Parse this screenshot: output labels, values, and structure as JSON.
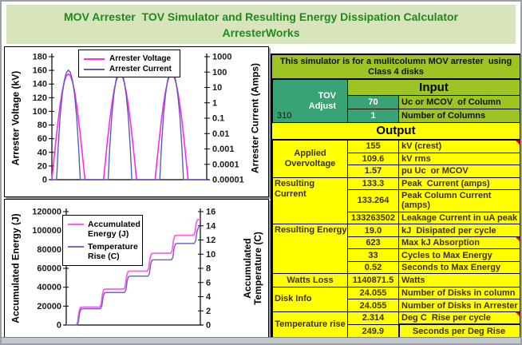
{
  "title": {
    "line1": "MOV Arrester  TOV Simulator and Resulting Energy Dissipation Calculator",
    "line2": "ArresterWorks"
  },
  "panel": {
    "note": "This simulator is for a mulitcolumn MOV arrester  using Class 4 disks",
    "tov": {
      "line1": "TOV",
      "line2": "Adjust",
      "value": "310"
    },
    "input_header": "Input",
    "input_rows": [
      {
        "value": "70",
        "desc": "Uc or MCOV  of Column"
      },
      {
        "value": "1",
        "desc": "Number of Columns"
      }
    ],
    "output_header": "Output",
    "group_labels": {
      "applied": "Applied Overvoltage",
      "current": "Resulting Current",
      "energy": "Resulting Energy",
      "watts": "Watts Loss",
      "disk": "Disk Info",
      "temp": "Temperature rise"
    },
    "output_rows": [
      {
        "value": "155",
        "desc": "kV (crest)"
      },
      {
        "value": "109.6",
        "desc": "kV rms"
      },
      {
        "value": "1.57",
        "desc": "pu Uc  or MCOV"
      },
      {
        "value": "133.3",
        "desc": "Peak  Current (amps)"
      },
      {
        "value": "133.264",
        "desc": "Peak Column Current (amps)"
      },
      {
        "value": "133263502",
        "desc": "Leakage Current in uA peak"
      },
      {
        "value": "19.0",
        "desc": "kJ  Disipated per cycle"
      },
      {
        "value": "623",
        "desc": "Max kJ Absorption"
      },
      {
        "value": "33",
        "desc": "Cycles to Max Energy"
      },
      {
        "value": "0.52",
        "desc": "Seconds to Max Energy"
      },
      {
        "value": "1140871.5",
        "desc": "Watts"
      },
      {
        "value": "24.055",
        "desc": "Number of Disks in column"
      },
      {
        "value": "24.055",
        "desc": "Number of Disks in Arrester"
      },
      {
        "value": "2.314",
        "desc": "Deg C  Rise per cycle"
      },
      {
        "value": "249.9",
        "desc": "Seconds per Deg Rise"
      }
    ],
    "colors": {
      "green_header": "#9dc422",
      "teal": "#38a476",
      "yellow": "#ffff00",
      "comment_marker": "#ff0000"
    }
  },
  "chart_data": [
    {
      "type": "line",
      "title": "",
      "left_axis": {
        "label": "Arrester Voltage (kV)",
        "min": 0,
        "max": 180,
        "tick_labels": [
          "180",
          "160",
          "140",
          "120",
          "100",
          "80",
          "60",
          "40",
          "20",
          "0"
        ]
      },
      "right_axis": {
        "label": "Arrester Current (Amps)",
        "scale": "log",
        "log_min": -5,
        "log_max": 3,
        "tick_labels": [
          "1000",
          "100",
          "10",
          "1",
          "0.1",
          "0.01",
          "0.001",
          "0.0001",
          "0.00001"
        ]
      },
      "x_axis": {
        "min": 0,
        "max": 3,
        "tick_labels": []
      },
      "legend_position": "top-center",
      "grid": false,
      "series": [
        {
          "name": "Arrester Voltage",
          "color": "#ff29f0",
          "width": 1.6,
          "axis": "left",
          "repeat": 3,
          "period": 1,
          "profile": [
            [
              0,
              0
            ],
            [
              0.04,
              30.2
            ],
            [
              0.08,
              59.3
            ],
            [
              0.12,
              86.1
            ],
            [
              0.16,
              109.6
            ],
            [
              0.2,
              128.9
            ],
            [
              0.24,
              143.2
            ],
            [
              0.28,
              152
            ],
            [
              0.32,
              155
            ],
            [
              0.36,
              152
            ],
            [
              0.4,
              143.2
            ],
            [
              0.44,
              128.9
            ],
            [
              0.48,
              109.6
            ],
            [
              0.52,
              86.1
            ],
            [
              0.56,
              59.3
            ],
            [
              0.6,
              30.2
            ],
            [
              0.64,
              0
            ],
            [
              1,
              0
            ]
          ]
        },
        {
          "name": "Arrester Current",
          "color": "#5a5cb8",
          "width": 1.4,
          "axis": "right",
          "repeat": 3,
          "period": 1,
          "profile": [
            [
              0,
              1e-05
            ],
            [
              0.09,
              1e-05
            ],
            [
              0.1,
              4e-05
            ],
            [
              0.12,
              0.001
            ],
            [
              0.16,
              0.13
            ],
            [
              0.2,
              3.3
            ],
            [
              0.24,
              27
            ],
            [
              0.28,
              90
            ],
            [
              0.32,
              133.3
            ],
            [
              0.36,
              90
            ],
            [
              0.4,
              27
            ],
            [
              0.44,
              3.3
            ],
            [
              0.48,
              0.13
            ],
            [
              0.52,
              0.001
            ],
            [
              0.54,
              4e-05
            ],
            [
              0.55,
              1e-05
            ],
            [
              1,
              1e-05
            ]
          ]
        }
      ]
    },
    {
      "type": "line",
      "title": "",
      "left_axis": {
        "label": "Accumulated Energy (J)",
        "min": 0,
        "max": 120000,
        "tick_labels": [
          "120000",
          "100000",
          "80000",
          "60000",
          "40000",
          "20000",
          "0"
        ]
      },
      "right_axis": {
        "label": "Accumulated Temperature (C)",
        "scale": "linear",
        "min": 0,
        "max": 16,
        "tick_labels": [
          "16",
          "14",
          "12",
          "10",
          "8",
          "6",
          "4",
          "2",
          "0"
        ]
      },
      "x_axis": {
        "min": 0,
        "max": 100,
        "tick_labels": []
      },
      "legend_position": "upper-left",
      "grid": false,
      "series": [
        {
          "name": "Accumulated Energy (J)",
          "color": "#ff5cf0",
          "width": 1.8,
          "axis": "left",
          "points": [
            [
              0,
              0
            ],
            [
              7.5,
              0
            ],
            [
              8.5,
              3000
            ],
            [
              9.5,
              14000
            ],
            [
              10.5,
              18500
            ],
            [
              12,
              19000
            ],
            [
              25,
              19000
            ],
            [
              26,
              22000
            ],
            [
              27,
              33000
            ],
            [
              28,
              37500
            ],
            [
              29.5,
              38000
            ],
            [
              43,
              38000
            ],
            [
              44,
              41000
            ],
            [
              45,
              52000
            ],
            [
              46,
              56500
            ],
            [
              47.5,
              57000
            ],
            [
              60.5,
              57000
            ],
            [
              61.5,
              60000
            ],
            [
              62.5,
              71000
            ],
            [
              63.5,
              75500
            ],
            [
              65,
              76000
            ],
            [
              78,
              76000
            ],
            [
              79,
              79000
            ],
            [
              80,
              90000
            ],
            [
              81,
              94500
            ],
            [
              82.5,
              95000
            ],
            [
              95,
              95000
            ],
            [
              96,
              98000
            ],
            [
              97,
              109000
            ],
            [
              98,
              111500
            ],
            [
              100,
              112000
            ]
          ]
        },
        {
          "name": "Temperature Rise (C)",
          "color": "#6a6cbe",
          "width": 1.5,
          "axis": "right",
          "points": [
            [
              0,
              0
            ],
            [
              8,
              0
            ],
            [
              9,
              0.35
            ],
            [
              10,
              1.7
            ],
            [
              11,
              2.25
            ],
            [
              12.5,
              2.3
            ],
            [
              25.5,
              2.3
            ],
            [
              26.5,
              2.65
            ],
            [
              27.5,
              4.0
            ],
            [
              28.5,
              4.55
            ],
            [
              30,
              4.6
            ],
            [
              43.5,
              4.6
            ],
            [
              44.5,
              4.95
            ],
            [
              45.5,
              6.3
            ],
            [
              46.5,
              6.85
            ],
            [
              48,
              6.9
            ],
            [
              61,
              6.9
            ],
            [
              62,
              7.25
            ],
            [
              63,
              8.6
            ],
            [
              64,
              9.15
            ],
            [
              65.5,
              9.2
            ],
            [
              78.5,
              9.2
            ],
            [
              79.5,
              9.55
            ],
            [
              80.5,
              10.9
            ],
            [
              81.5,
              11.45
            ],
            [
              83,
              11.5
            ],
            [
              95.5,
              11.5
            ],
            [
              96.5,
              11.85
            ],
            [
              97.5,
              13.2
            ],
            [
              98.5,
              13.75
            ],
            [
              100,
              13.9
            ]
          ]
        }
      ]
    }
  ]
}
